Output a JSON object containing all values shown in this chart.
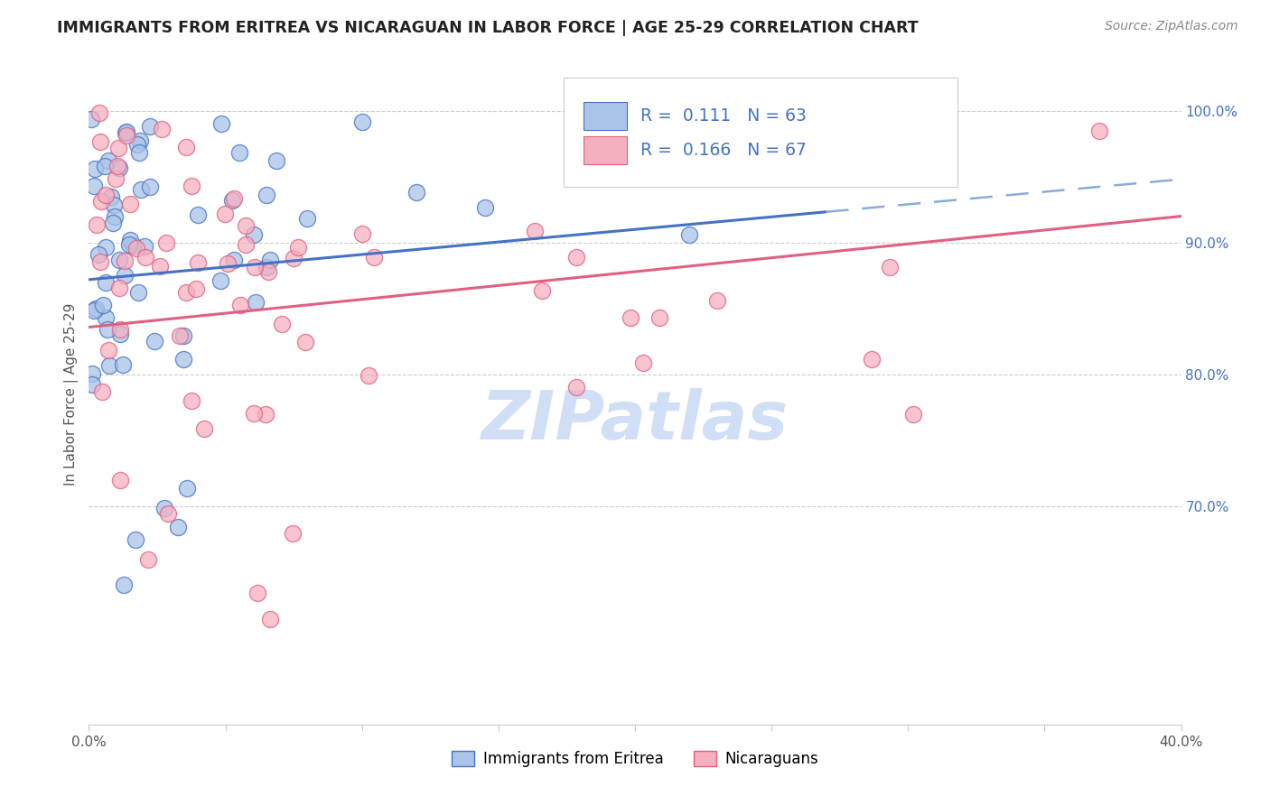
{
  "title": "IMMIGRANTS FROM ERITREA VS NICARAGUAN IN LABOR FORCE | AGE 25-29 CORRELATION CHART",
  "source": "Source: ZipAtlas.com",
  "ylabel": "In Labor Force | Age 25-29",
  "r_eritrea": 0.111,
  "n_eritrea": 63,
  "r_nicaraguan": 0.166,
  "n_nicaraguan": 67,
  "xmin": 0.0,
  "xmax": 0.4,
  "ymin": 0.535,
  "ymax": 1.035,
  "ytick_positions": [
    0.7,
    0.8,
    0.9,
    1.0
  ],
  "ytick_labels": [
    "70.0%",
    "80.0%",
    "90.0%",
    "100.0%"
  ],
  "xtick_positions": [
    0.0,
    0.05,
    0.1,
    0.15,
    0.2,
    0.25,
    0.3,
    0.35,
    0.4
  ],
  "xtick_labels": [
    "0.0%",
    "",
    "",
    "",
    "",
    "",
    "",
    "",
    "40.0%"
  ],
  "color_eritrea_fill": "#aac4e8",
  "color_eritrea_edge": "#4472c4",
  "color_nicaraguan_fill": "#f5b0c0",
  "color_nicaraguan_edge": "#e06080",
  "color_eritrea_line": "#4472c4",
  "color_nicaraguan_line": "#e06080",
  "color_dashed": "#8aaad8",
  "watermark_color": "#d0dff5",
  "grid_color": "#cccccc",
  "title_color": "#222222",
  "source_color": "#888888",
  "axis_label_color": "#555555",
  "tick_label_color": "#555555",
  "right_tick_color": "#4472c4",
  "legend_border_color": "#cccccc",
  "legend_r_color": "#4472c4",
  "legend_n_color": "#4472c4"
}
